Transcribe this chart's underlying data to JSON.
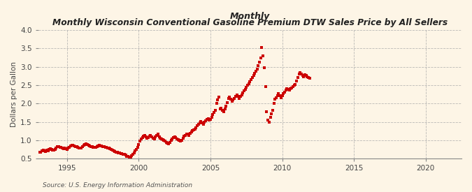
{
  "title_italic": "Monthly",
  "title_bold": " Wisconsin Conventional Gasoline Premium DTW Sales Price by All Sellers",
  "ylabel": "Dollars per Gallon",
  "source": "Source: U.S. Energy Information Administration",
  "bg_color": "#FDF5E6",
  "marker_color": "#CC0000",
  "xlim": [
    1993.0,
    2022.5
  ],
  "ylim": [
    0.5,
    4.0
  ],
  "yticks": [
    0.5,
    1.0,
    1.5,
    2.0,
    2.5,
    3.0,
    3.5,
    4.0
  ],
  "xticks": [
    1995,
    2000,
    2005,
    2010,
    2015,
    2020
  ],
  "data": [
    [
      1993.08,
      0.67
    ],
    [
      1993.17,
      0.68
    ],
    [
      1993.25,
      0.71
    ],
    [
      1993.33,
      0.73
    ],
    [
      1993.42,
      0.72
    ],
    [
      1993.5,
      0.7
    ],
    [
      1993.58,
      0.73
    ],
    [
      1993.67,
      0.72
    ],
    [
      1993.75,
      0.75
    ],
    [
      1993.83,
      0.77
    ],
    [
      1993.92,
      0.76
    ],
    [
      1994.0,
      0.74
    ],
    [
      1994.08,
      0.73
    ],
    [
      1994.17,
      0.75
    ],
    [
      1994.25,
      0.79
    ],
    [
      1994.33,
      0.82
    ],
    [
      1994.42,
      0.83
    ],
    [
      1994.5,
      0.81
    ],
    [
      1994.58,
      0.8
    ],
    [
      1994.67,
      0.79
    ],
    [
      1994.75,
      0.77
    ],
    [
      1994.83,
      0.78
    ],
    [
      1994.92,
      0.77
    ],
    [
      1995.0,
      0.76
    ],
    [
      1995.08,
      0.78
    ],
    [
      1995.17,
      0.81
    ],
    [
      1995.25,
      0.84
    ],
    [
      1995.33,
      0.86
    ],
    [
      1995.42,
      0.87
    ],
    [
      1995.5,
      0.85
    ],
    [
      1995.58,
      0.83
    ],
    [
      1995.67,
      0.82
    ],
    [
      1995.75,
      0.81
    ],
    [
      1995.83,
      0.79
    ],
    [
      1995.92,
      0.78
    ],
    [
      1996.0,
      0.79
    ],
    [
      1996.08,
      0.83
    ],
    [
      1996.17,
      0.87
    ],
    [
      1996.25,
      0.88
    ],
    [
      1996.33,
      0.9
    ],
    [
      1996.42,
      0.89
    ],
    [
      1996.5,
      0.86
    ],
    [
      1996.58,
      0.84
    ],
    [
      1996.67,
      0.83
    ],
    [
      1996.75,
      0.82
    ],
    [
      1996.83,
      0.81
    ],
    [
      1996.92,
      0.8
    ],
    [
      1997.0,
      0.81
    ],
    [
      1997.08,
      0.82
    ],
    [
      1997.17,
      0.84
    ],
    [
      1997.25,
      0.86
    ],
    [
      1997.33,
      0.85
    ],
    [
      1997.42,
      0.84
    ],
    [
      1997.5,
      0.83
    ],
    [
      1997.58,
      0.82
    ],
    [
      1997.67,
      0.81
    ],
    [
      1997.75,
      0.8
    ],
    [
      1997.83,
      0.79
    ],
    [
      1997.92,
      0.78
    ],
    [
      1998.0,
      0.77
    ],
    [
      1998.08,
      0.75
    ],
    [
      1998.17,
      0.73
    ],
    [
      1998.25,
      0.71
    ],
    [
      1998.33,
      0.69
    ],
    [
      1998.42,
      0.68
    ],
    [
      1998.5,
      0.67
    ],
    [
      1998.58,
      0.66
    ],
    [
      1998.67,
      0.65
    ],
    [
      1998.75,
      0.64
    ],
    [
      1998.83,
      0.63
    ],
    [
      1998.92,
      0.62
    ],
    [
      1999.0,
      0.61
    ],
    [
      1999.08,
      0.59
    ],
    [
      1999.17,
      0.57
    ],
    [
      1999.25,
      0.56
    ],
    [
      1999.33,
      0.55
    ],
    [
      1999.42,
      0.55
    ],
    [
      1999.5,
      0.58
    ],
    [
      1999.58,
      0.62
    ],
    [
      1999.67,
      0.66
    ],
    [
      1999.75,
      0.71
    ],
    [
      1999.83,
      0.76
    ],
    [
      1999.92,
      0.8
    ],
    [
      2000.0,
      0.88
    ],
    [
      2000.08,
      0.97
    ],
    [
      2000.17,
      1.03
    ],
    [
      2000.25,
      1.08
    ],
    [
      2000.33,
      1.12
    ],
    [
      2000.42,
      1.14
    ],
    [
      2000.5,
      1.09
    ],
    [
      2000.58,
      1.05
    ],
    [
      2000.67,
      1.07
    ],
    [
      2000.75,
      1.11
    ],
    [
      2000.83,
      1.13
    ],
    [
      2000.92,
      1.09
    ],
    [
      2001.0,
      1.06
    ],
    [
      2001.08,
      1.04
    ],
    [
      2001.17,
      1.09
    ],
    [
      2001.25,
      1.14
    ],
    [
      2001.33,
      1.17
    ],
    [
      2001.42,
      1.1
    ],
    [
      2001.5,
      1.06
    ],
    [
      2001.58,
      1.03
    ],
    [
      2001.67,
      1.01
    ],
    [
      2001.75,
      0.99
    ],
    [
      2001.83,
      0.97
    ],
    [
      2001.92,
      0.94
    ],
    [
      2002.0,
      0.92
    ],
    [
      2002.08,
      0.91
    ],
    [
      2002.17,
      0.94
    ],
    [
      2002.25,
      0.99
    ],
    [
      2002.33,
      1.04
    ],
    [
      2002.42,
      1.07
    ],
    [
      2002.5,
      1.09
    ],
    [
      2002.58,
      1.07
    ],
    [
      2002.67,
      1.04
    ],
    [
      2002.75,
      1.02
    ],
    [
      2002.83,
      0.99
    ],
    [
      2002.92,
      0.97
    ],
    [
      2003.0,
      0.99
    ],
    [
      2003.08,
      1.05
    ],
    [
      2003.17,
      1.11
    ],
    [
      2003.25,
      1.14
    ],
    [
      2003.33,
      1.17
    ],
    [
      2003.42,
      1.16
    ],
    [
      2003.5,
      1.13
    ],
    [
      2003.58,
      1.18
    ],
    [
      2003.67,
      1.22
    ],
    [
      2003.75,
      1.26
    ],
    [
      2003.83,
      1.29
    ],
    [
      2003.92,
      1.31
    ],
    [
      2004.0,
      1.34
    ],
    [
      2004.08,
      1.39
    ],
    [
      2004.17,
      1.44
    ],
    [
      2004.25,
      1.48
    ],
    [
      2004.33,
      1.51
    ],
    [
      2004.42,
      1.47
    ],
    [
      2004.5,
      1.44
    ],
    [
      2004.58,
      1.49
    ],
    [
      2004.67,
      1.53
    ],
    [
      2004.75,
      1.57
    ],
    [
      2004.83,
      1.59
    ],
    [
      2004.92,
      1.54
    ],
    [
      2005.0,
      1.56
    ],
    [
      2005.08,
      1.63
    ],
    [
      2005.17,
      1.7
    ],
    [
      2005.25,
      1.76
    ],
    [
      2005.33,
      1.82
    ],
    [
      2005.42,
      2.0
    ],
    [
      2005.5,
      2.1
    ],
    [
      2005.58,
      2.18
    ],
    [
      2005.67,
      1.85
    ],
    [
      2005.75,
      1.88
    ],
    [
      2005.83,
      1.82
    ],
    [
      2005.92,
      1.78
    ],
    [
      2006.0,
      1.85
    ],
    [
      2006.08,
      1.93
    ],
    [
      2006.17,
      2.03
    ],
    [
      2006.25,
      2.14
    ],
    [
      2006.33,
      2.18
    ],
    [
      2006.42,
      2.11
    ],
    [
      2006.5,
      2.06
    ],
    [
      2006.58,
      2.09
    ],
    [
      2006.67,
      2.14
    ],
    [
      2006.75,
      2.19
    ],
    [
      2006.83,
      2.24
    ],
    [
      2006.92,
      2.19
    ],
    [
      2007.0,
      2.14
    ],
    [
      2007.08,
      2.19
    ],
    [
      2007.17,
      2.24
    ],
    [
      2007.25,
      2.29
    ],
    [
      2007.33,
      2.34
    ],
    [
      2007.42,
      2.39
    ],
    [
      2007.5,
      2.44
    ],
    [
      2007.58,
      2.49
    ],
    [
      2007.67,
      2.54
    ],
    [
      2007.75,
      2.6
    ],
    [
      2007.83,
      2.65
    ],
    [
      2007.92,
      2.7
    ],
    [
      2008.0,
      2.76
    ],
    [
      2008.08,
      2.82
    ],
    [
      2008.17,
      2.88
    ],
    [
      2008.25,
      2.93
    ],
    [
      2008.33,
      3.02
    ],
    [
      2008.42,
      3.12
    ],
    [
      2008.5,
      3.23
    ],
    [
      2008.58,
      3.52
    ],
    [
      2008.67,
      3.3
    ],
    [
      2008.75,
      2.98
    ],
    [
      2008.83,
      2.45
    ],
    [
      2008.92,
      1.78
    ],
    [
      2009.0,
      1.55
    ],
    [
      2009.08,
      1.5
    ],
    [
      2009.17,
      1.62
    ],
    [
      2009.25,
      1.72
    ],
    [
      2009.33,
      1.82
    ],
    [
      2009.42,
      2.01
    ],
    [
      2009.5,
      2.11
    ],
    [
      2009.58,
      2.16
    ],
    [
      2009.67,
      2.21
    ],
    [
      2009.75,
      2.26
    ],
    [
      2009.83,
      2.21
    ],
    [
      2009.92,
      2.16
    ],
    [
      2010.0,
      2.21
    ],
    [
      2010.08,
      2.26
    ],
    [
      2010.17,
      2.31
    ],
    [
      2010.25,
      2.36
    ],
    [
      2010.33,
      2.41
    ],
    [
      2010.42,
      2.39
    ],
    [
      2010.5,
      2.36
    ],
    [
      2010.58,
      2.41
    ],
    [
      2010.67,
      2.43
    ],
    [
      2010.75,
      2.46
    ],
    [
      2010.83,
      2.49
    ],
    [
      2010.92,
      2.51
    ],
    [
      2011.0,
      2.61
    ],
    [
      2011.08,
      2.71
    ],
    [
      2011.17,
      2.81
    ],
    [
      2011.25,
      2.84
    ],
    [
      2011.33,
      2.81
    ],
    [
      2011.42,
      2.76
    ],
    [
      2011.5,
      2.73
    ],
    [
      2011.58,
      2.78
    ],
    [
      2011.67,
      2.76
    ],
    [
      2011.75,
      2.73
    ],
    [
      2011.83,
      2.7
    ],
    [
      2011.92,
      2.68
    ]
  ]
}
